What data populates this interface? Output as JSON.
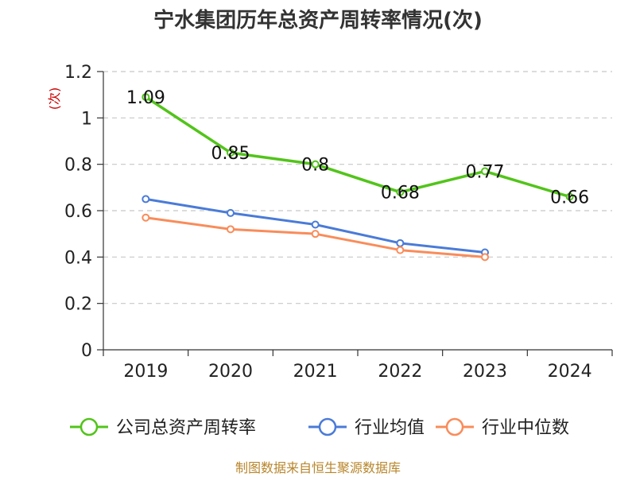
{
  "chart_data": {
    "type": "line",
    "title": "宁水集团历年总资产周转率情况(次)",
    "ylabel": "(次)",
    "xlabel": "",
    "categories": [
      "2019",
      "2020",
      "2021",
      "2022",
      "2023",
      "2024"
    ],
    "ylim": [
      0,
      1.2
    ],
    "yticks": [
      0,
      0.2,
      0.4,
      0.6,
      0.8,
      1,
      1.2
    ],
    "ytick_labels": [
      "0",
      "0.2",
      "0.4",
      "0.6",
      "0.8",
      "1",
      "1.2"
    ],
    "grid": true,
    "legend_position": "bottom",
    "series": [
      {
        "name": "公司总资产周转率",
        "color": "#52c41a",
        "values": [
          1.09,
          0.85,
          0.8,
          0.68,
          0.77,
          0.66
        ],
        "labels": [
          "1.09",
          "0.85",
          "0.8",
          "0.68",
          "0.77",
          "0.66"
        ]
      },
      {
        "name": "行业均值",
        "color": "#4a7bd8",
        "values": [
          0.65,
          0.59,
          0.54,
          0.46,
          0.42,
          null
        ]
      },
      {
        "name": "行业中位数",
        "color": "#f98c5a",
        "values": [
          0.57,
          0.52,
          0.5,
          0.43,
          0.4,
          null
        ]
      }
    ],
    "source": "制图数据来自恒生聚源数据库"
  }
}
